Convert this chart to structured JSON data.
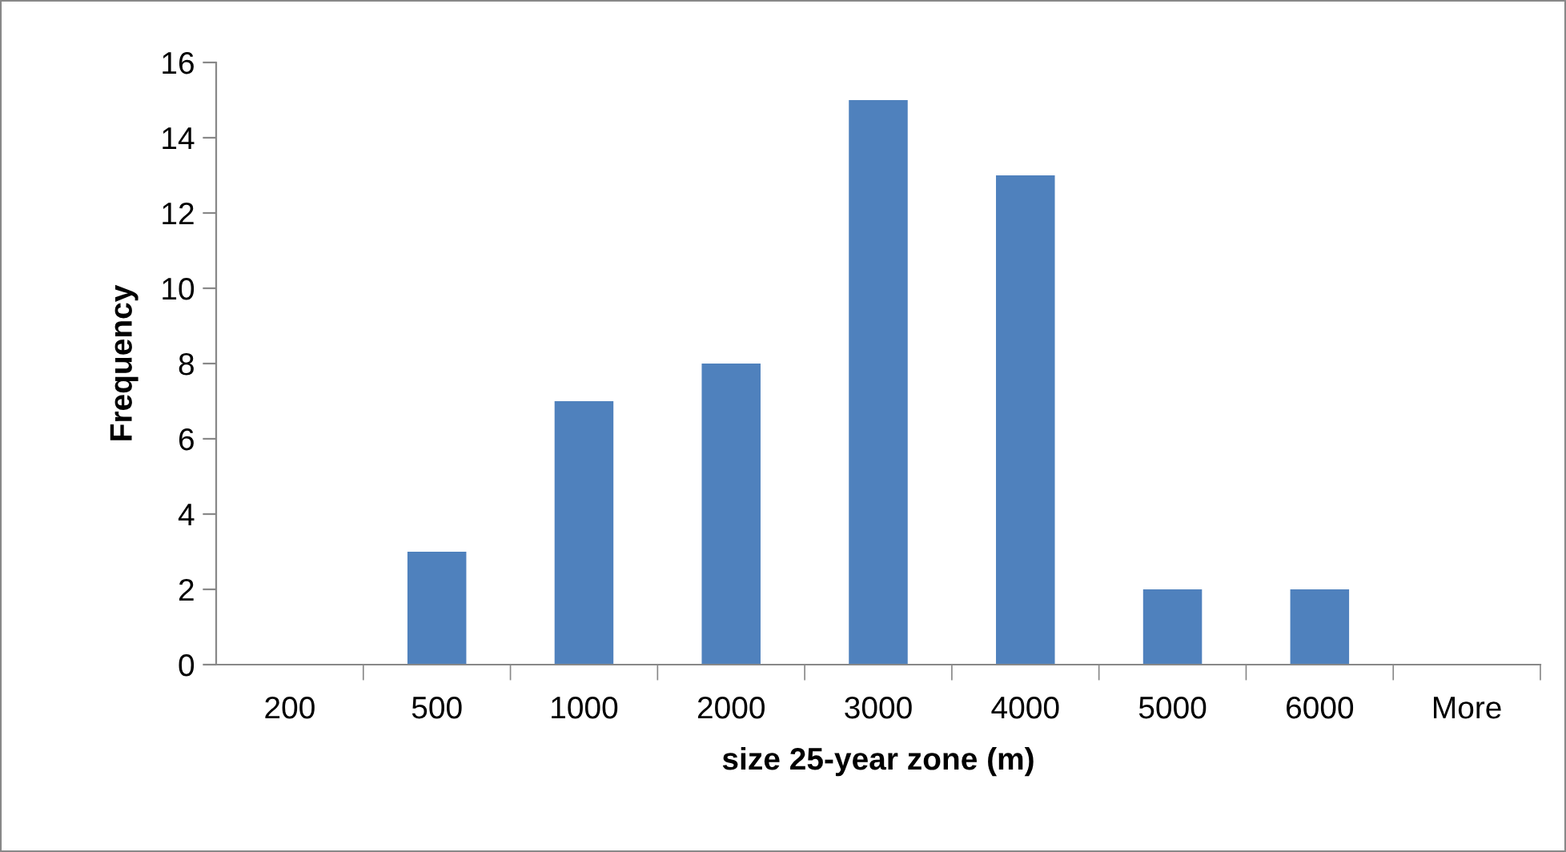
{
  "chart_data": {
    "type": "bar",
    "xlabel": "size 25-year zone (m)",
    "ylabel": "Frequency",
    "categories": [
      "200",
      "500",
      "1000",
      "2000",
      "3000",
      "4000",
      "5000",
      "6000",
      "More"
    ],
    "values": [
      0,
      3,
      7,
      8,
      15,
      13,
      2,
      2,
      0
    ],
    "color": "#4f81bd",
    "ylim": [
      0,
      16
    ],
    "yticks": [
      0,
      2,
      4,
      6,
      8,
      10,
      12,
      14,
      16
    ],
    "grid": false,
    "legend": false
  }
}
